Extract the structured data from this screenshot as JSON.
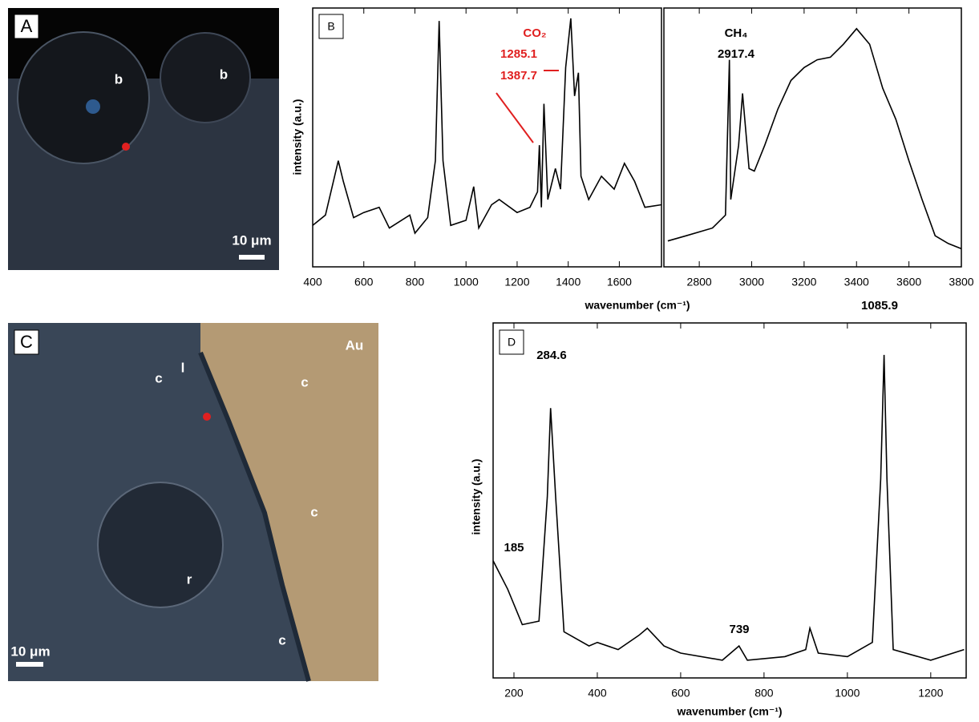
{
  "panels": {
    "A": {
      "letter": "A",
      "labels": [
        "b",
        "b"
      ],
      "scale": "10 μm"
    },
    "C": {
      "letter": "C",
      "labels": [
        "Au",
        "c",
        "l",
        "c",
        "c",
        "r",
        "c"
      ],
      "scale": "10 μm"
    }
  },
  "chart_data": [
    {
      "type": "line",
      "panel": "B",
      "ylabel": "intensity (a.u.)",
      "xlabel": "wavenumber (cm⁻¹)",
      "annotations": [
        "CO₂",
        "1285.1",
        "1387.7"
      ],
      "annotation_color": "#e02020",
      "color": "#000000",
      "xlim": [
        400,
        1765
      ],
      "ylim": [
        0,
        100
      ],
      "xticks": [
        400,
        600,
        800,
        1000,
        1200,
        1400,
        1600
      ],
      "x": [
        400,
        450,
        500,
        520,
        560,
        600,
        660,
        700,
        780,
        800,
        850,
        880,
        895,
        910,
        940,
        1000,
        1030,
        1050,
        1100,
        1130,
        1200,
        1250,
        1280,
        1287,
        1295,
        1305,
        1320,
        1350,
        1370,
        1390,
        1410,
        1425,
        1440,
        1450,
        1480,
        1530,
        1580,
        1620,
        1660,
        1700,
        1765
      ],
      "values": [
        16,
        20,
        41,
        33,
        19,
        21,
        23,
        15,
        20,
        13,
        19,
        41,
        95,
        41,
        16,
        18,
        31,
        15,
        24,
        26,
        21,
        23,
        29,
        47,
        23,
        63,
        26,
        38,
        30,
        77,
        96,
        66,
        75,
        35,
        26,
        35,
        30,
        40,
        33,
        23,
        24
      ]
    },
    {
      "type": "line",
      "annotations": [
        "CH₄",
        "2917.4"
      ],
      "annotation_color": "#000000",
      "color": "#000000",
      "xlim": [
        2665,
        3800
      ],
      "ylim": [
        0,
        100
      ],
      "xticks": [
        2800,
        3000,
        3200,
        3400,
        3600,
        3800
      ],
      "x": [
        2680,
        2750,
        2850,
        2900,
        2915,
        2920,
        2950,
        2965,
        2990,
        3010,
        3050,
        3100,
        3150,
        3200,
        3250,
        3300,
        3350,
        3400,
        3450,
        3500,
        3550,
        3600,
        3650,
        3700,
        3750,
        3800
      ],
      "values": [
        10,
        12,
        15,
        20,
        80,
        26,
        47,
        67,
        38,
        37,
        47,
        61,
        72,
        77,
        80,
        81,
        86,
        92,
        86,
        69,
        57,
        41,
        26,
        12,
        9,
        7
      ]
    },
    {
      "type": "line",
      "panel": "D",
      "ylabel": "intensity (a.u.)",
      "xlabel": "wavenumber (cm⁻¹)",
      "annotations": [
        "284.6",
        "185",
        "739",
        "1085.9"
      ],
      "annotation_color": "#000000",
      "color": "#000000",
      "xlim": [
        150,
        1285
      ],
      "ylim": [
        0,
        100
      ],
      "xticks": [
        200,
        400,
        600,
        800,
        1000,
        1200
      ],
      "x": [
        150,
        185,
        220,
        260,
        280,
        288,
        300,
        320,
        380,
        400,
        450,
        500,
        520,
        560,
        600,
        700,
        740,
        760,
        850,
        900,
        910,
        930,
        1000,
        1060,
        1080,
        1088,
        1095,
        1110,
        1200,
        1280
      ],
      "values": [
        33,
        25,
        15,
        16,
        51,
        76,
        51,
        13,
        9,
        10,
        8,
        12,
        14,
        9,
        7,
        5,
        9,
        5,
        6,
        8,
        14,
        7,
        6,
        10,
        56,
        91,
        56,
        8,
        5,
        8
      ]
    }
  ]
}
